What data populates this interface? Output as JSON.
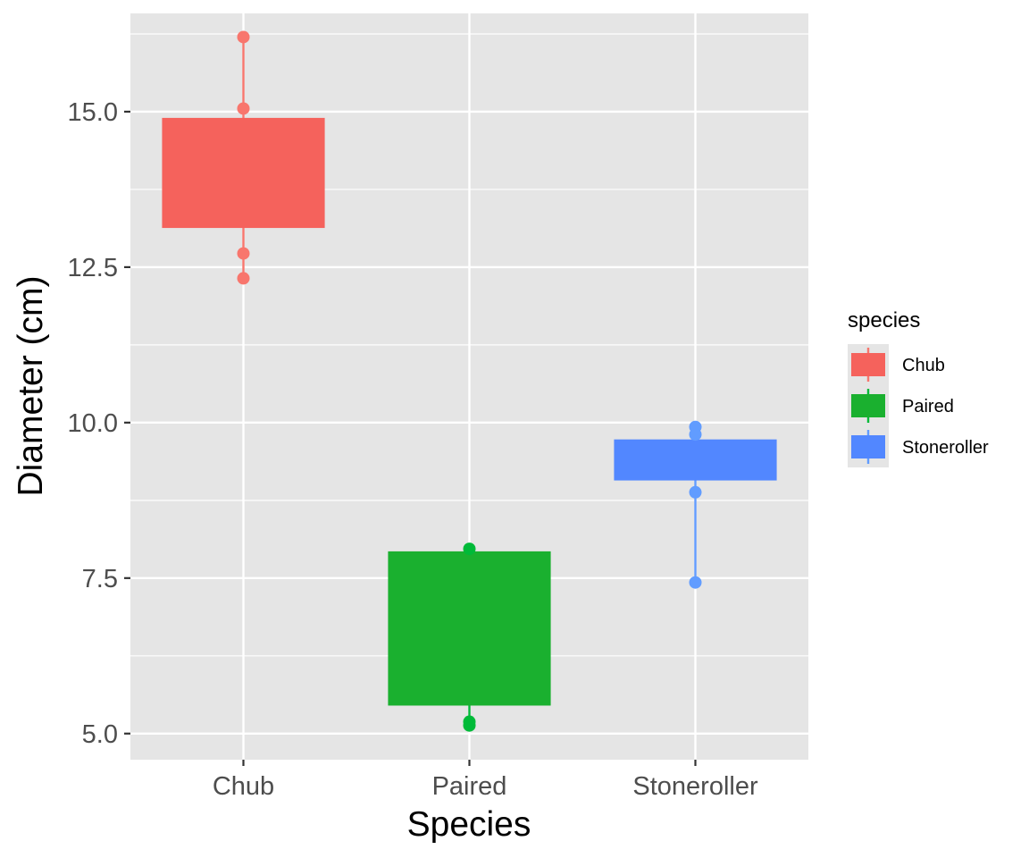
{
  "chart_data": {
    "type": "boxplot",
    "title": "",
    "xlabel": "Species",
    "ylabel": "Diameter (cm)",
    "ylim": [
      4.58,
      16.58
    ],
    "y_major_ticks": [
      5.0,
      7.5,
      10.0,
      12.5,
      15.0
    ],
    "y_tick_labels": [
      "5.0",
      "7.5",
      "10.0",
      "12.5",
      "15.0"
    ],
    "y_minor_ticks": [
      6.25,
      8.75,
      11.25,
      13.75,
      16.25
    ],
    "categories": [
      "Chub",
      "Paired",
      "Stoneroller"
    ],
    "grid": true,
    "legend": {
      "title": "species",
      "position": "right",
      "entries": [
        "Chub",
        "Paired",
        "Stoneroller"
      ]
    },
    "series": [
      {
        "name": "Chub",
        "color": "#F8766D",
        "box_fill": "#F5625C",
        "box_low": 13.13,
        "box_high": 14.9,
        "points": [
          16.2,
          15.05,
          12.72,
          12.32
        ]
      },
      {
        "name": "Paired",
        "color": "#00BA38",
        "box_fill": "#1AB02F",
        "box_low": 5.45,
        "box_high": 7.93,
        "points": [
          7.97,
          5.19,
          5.13
        ]
      },
      {
        "name": "Stoneroller",
        "color": "#619CFF",
        "box_fill": "#5287FF",
        "box_low": 9.07,
        "box_high": 9.73,
        "points": [
          9.93,
          9.81,
          8.88,
          7.43
        ]
      }
    ]
  }
}
